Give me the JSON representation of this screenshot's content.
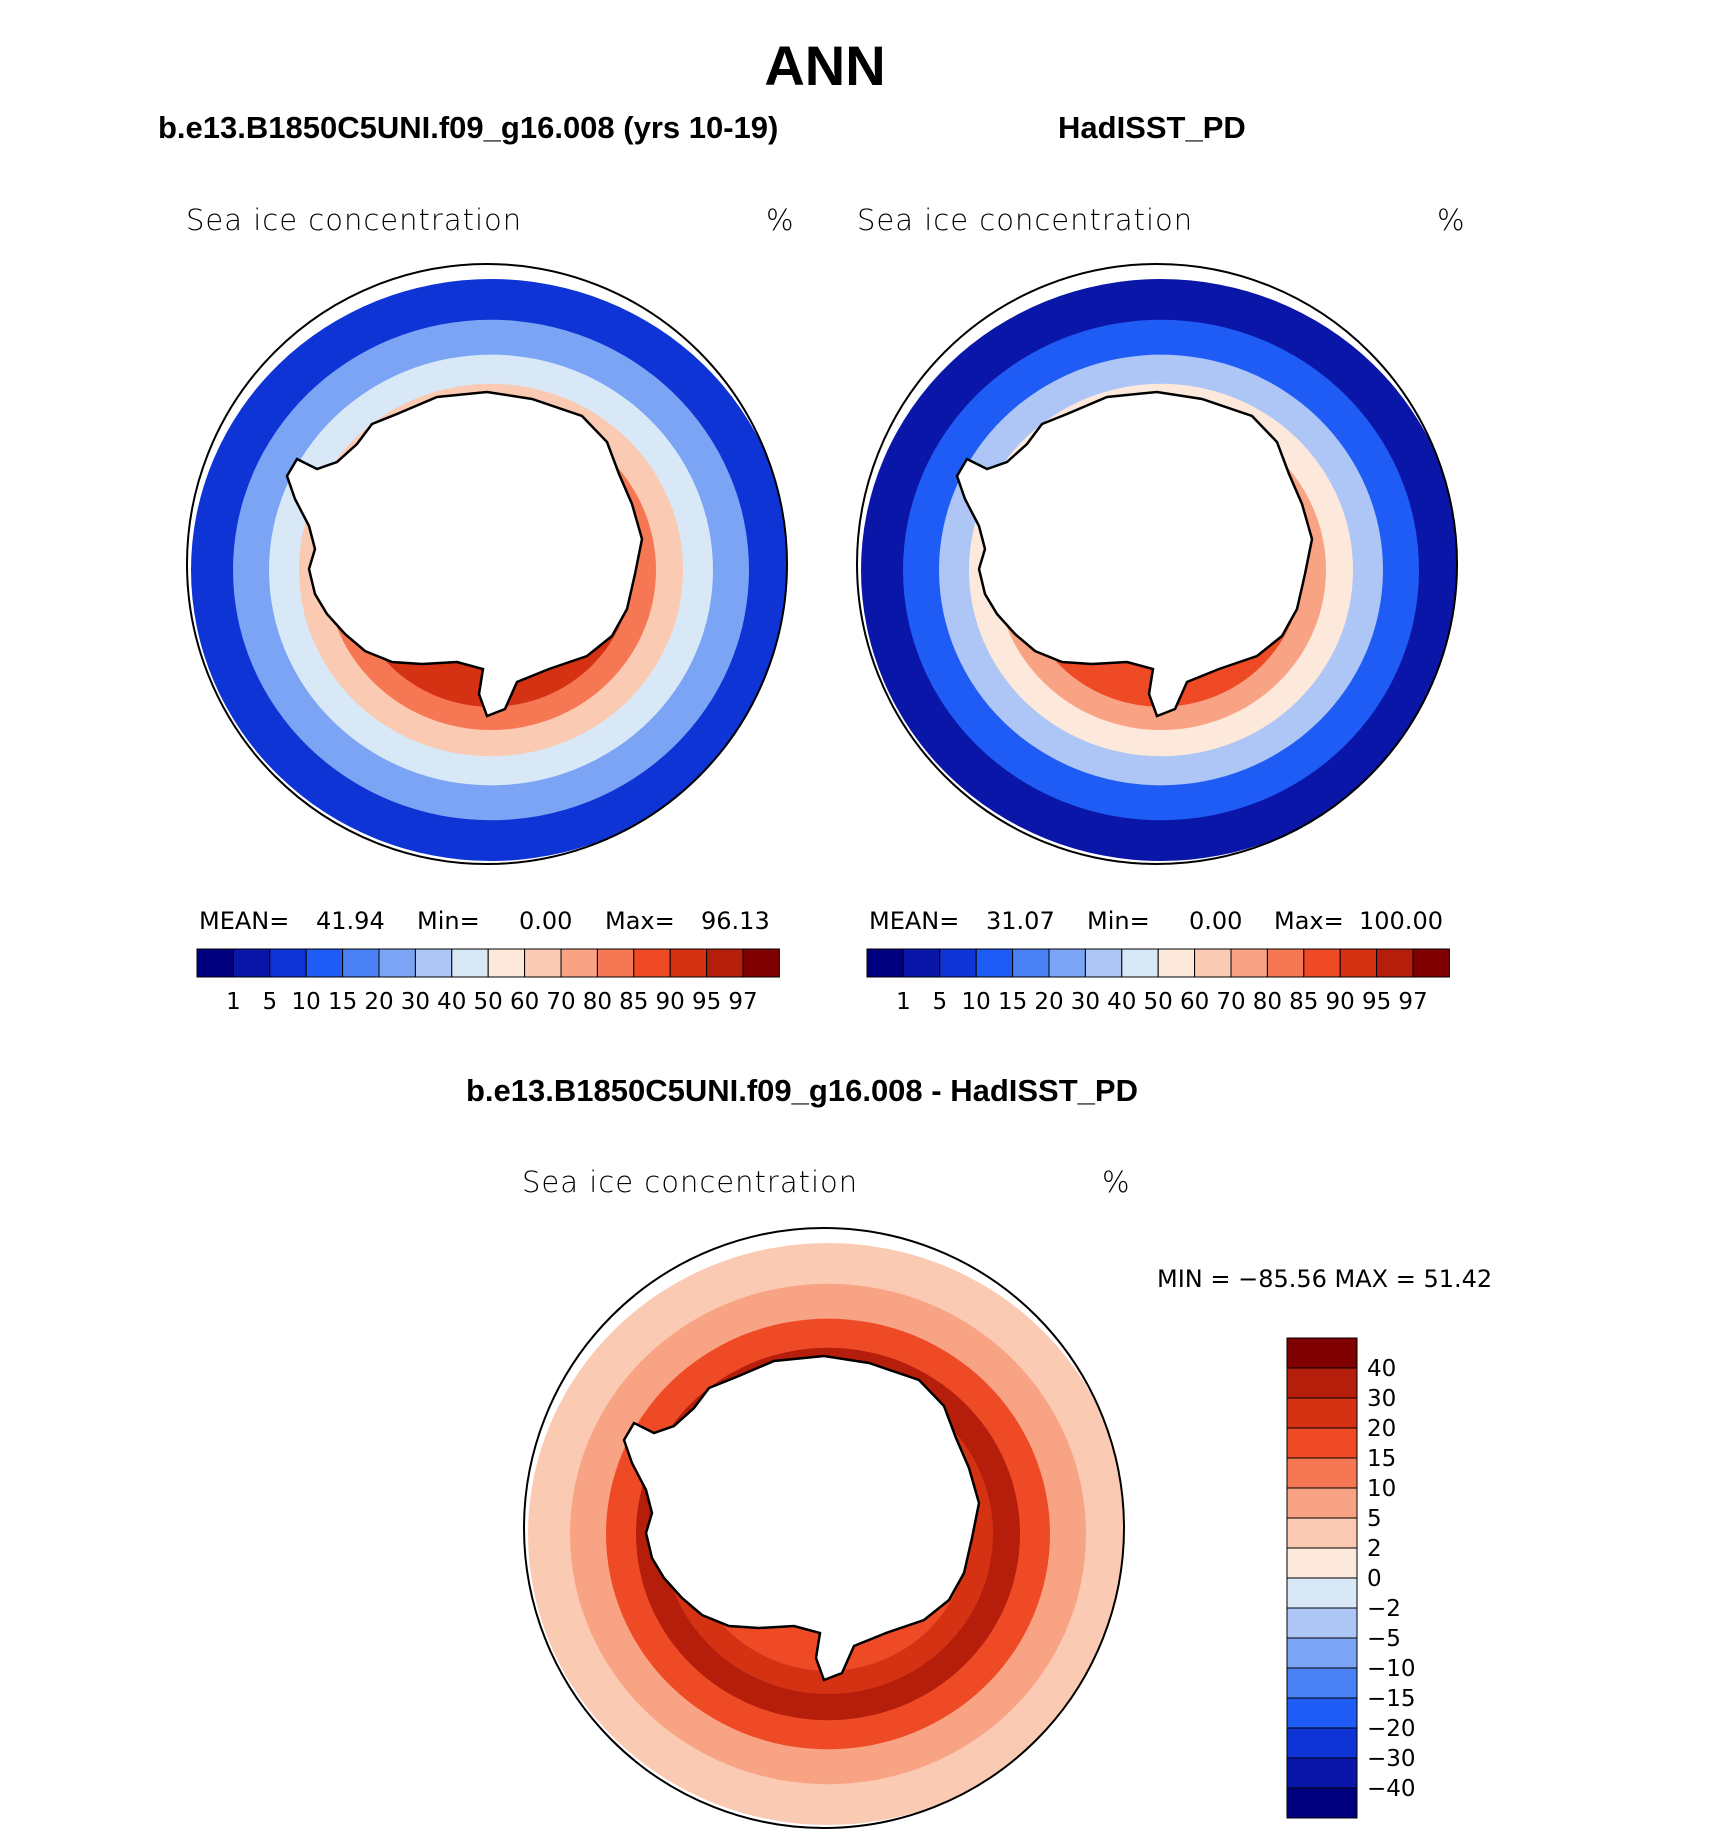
{
  "figure": {
    "title": "ANN",
    "bottom_title": "b.e13.B1850C5UNI.f09_g16.008 - HadISST_PD"
  },
  "colors": {
    "abs_scale": [
      "#00007f",
      "#0a16a8",
      "#0f34d6",
      "#1f5cf5",
      "#4a82f5",
      "#7ba4f5",
      "#adc6f5",
      "#d8e8f7",
      "#fde9dc",
      "#fbcab3",
      "#f9a385",
      "#f67754",
      "#ee4a26",
      "#d53214",
      "#b51e0b",
      "#7f0000"
    ],
    "diff_scale": [
      "#00007f",
      "#0a16a8",
      "#0f34d6",
      "#1f5cf5",
      "#4a82f5",
      "#7ba4f5",
      "#adc6f5",
      "#d8e8f7",
      "#fde9dc",
      "#fbcab3",
      "#f9a385",
      "#f67754",
      "#ee4a26",
      "#d53214",
      "#b51e0b",
      "#7f0000"
    ],
    "land": "#ffffff",
    "coast": "#000000"
  },
  "chart_data": [
    {
      "type": "heatmap",
      "title": "b.e13.B1850C5UNI.f09_g16.008 (yrs 10-19)",
      "subtitle": "Sea ice concentration",
      "units": "%",
      "projection": "south-polar-stereographic",
      "stats": {
        "mean_label": "MEAN=",
        "mean": "41.94",
        "min_label": "Min=",
        "min": "0.00",
        "max_label": "Max=",
        "max": "96.13"
      },
      "colorbar": {
        "orientation": "horizontal",
        "levels": [
          "1",
          "5",
          "10",
          "15",
          "20",
          "30",
          "40",
          "50",
          "60",
          "70",
          "80",
          "85",
          "90",
          "95",
          "97"
        ]
      },
      "ring_values": [
        90,
        80,
        60,
        40,
        20,
        5
      ]
    },
    {
      "type": "heatmap",
      "title": "HadISST_PD",
      "subtitle": "Sea ice concentration",
      "units": "%",
      "projection": "south-polar-stereographic",
      "stats": {
        "mean_label": "MEAN=",
        "mean": "31.07",
        "min_label": "Min=",
        "min": "0.00",
        "max_label": "Max=",
        "max": "100.00"
      },
      "colorbar": {
        "orientation": "horizontal",
        "levels": [
          "1",
          "5",
          "10",
          "15",
          "20",
          "30",
          "40",
          "50",
          "60",
          "70",
          "80",
          "85",
          "90",
          "95",
          "97"
        ]
      },
      "ring_values": [
        85,
        70,
        50,
        30,
        10,
        1
      ]
    },
    {
      "type": "heatmap",
      "title": "b.e13.B1850C5UNI.f09_g16.008 - HadISST_PD",
      "subtitle": "Sea ice concentration",
      "units": "%",
      "projection": "south-polar-stereographic",
      "stats": {
        "text": "MIN = −85.56 MAX =   51.42"
      },
      "colorbar": {
        "orientation": "vertical",
        "levels": [
          "−40",
          "−30",
          "−20",
          "−15",
          "−10",
          "−5",
          "−2",
          "0",
          "2",
          "5",
          "10",
          "15",
          "20",
          "30",
          "40"
        ]
      },
      "ring_values": [
        15,
        20,
        30,
        15,
        5,
        2
      ]
    }
  ]
}
